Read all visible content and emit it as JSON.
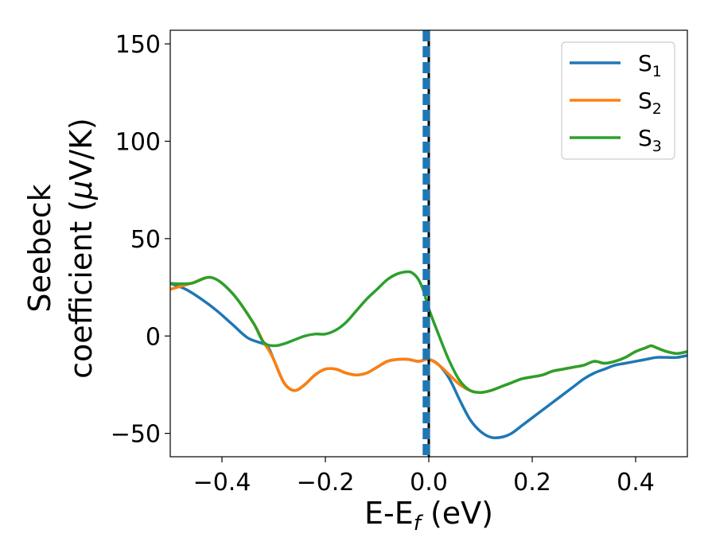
{
  "chart_data": {
    "type": "line",
    "title": "",
    "xlabel": {
      "main": "E-E",
      "sub": "f",
      "unit": " (eV)"
    },
    "ylabel": {
      "line1": "Seebeck",
      "line2_a": "coefficient  (",
      "mu": "μ",
      "line2_b": "V/K)"
    },
    "xlim": [
      -0.5,
      0.5
    ],
    "ylim": [
      -62,
      157
    ],
    "x_ticks": [
      -0.4,
      -0.2,
      0.0,
      0.2,
      0.4
    ],
    "x_tick_labels": [
      "−0.4",
      "−0.2",
      "0.0",
      "0.2",
      "0.4"
    ],
    "y_ticks": [
      -50,
      0,
      50,
      100,
      150
    ],
    "y_tick_labels": [
      "−50",
      "0",
      "50",
      "100",
      "150"
    ],
    "grid": false,
    "legend_position": "top-right",
    "vertical_lines": [
      {
        "x": -0.005,
        "style": "dashed",
        "color": "#1f77b4"
      },
      {
        "x": 0.0,
        "style": "solid",
        "color": "#000000"
      }
    ],
    "series": [
      {
        "name": "S",
        "subscript": "1",
        "color": "#1f77b4",
        "x": [
          -0.5,
          -0.47,
          -0.44,
          -0.41,
          -0.38,
          -0.35,
          -0.32,
          -0.31,
          -0.3,
          -0.28,
          -0.26,
          -0.24,
          -0.22,
          -0.2,
          -0.18,
          -0.16,
          -0.14,
          -0.12,
          -0.1,
          -0.08,
          -0.06,
          -0.04,
          -0.02,
          0.0,
          0.02,
          0.04,
          0.06,
          0.08,
          0.1,
          0.12,
          0.14,
          0.16,
          0.18,
          0.2,
          0.22,
          0.24,
          0.26,
          0.28,
          0.3,
          0.32,
          0.34,
          0.36,
          0.38,
          0.4,
          0.42,
          0.44,
          0.46,
          0.48,
          0.5
        ],
        "y": [
          27,
          24,
          19,
          13,
          6,
          -1,
          -4,
          -6,
          -12,
          -24,
          -28,
          -25,
          -20,
          -17,
          -17,
          -19,
          -20,
          -19,
          -16,
          -13,
          -12,
          -12,
          -13,
          -12,
          -15,
          -22,
          -33,
          -43,
          -49,
          -52,
          -52,
          -50,
          -46,
          -42,
          -38,
          -34,
          -30,
          -26,
          -22,
          -19,
          -17,
          -15,
          -14,
          -13,
          -12,
          -11,
          -11,
          -11,
          -10
        ]
      },
      {
        "name": "S",
        "subscript": "2",
        "color": "#ff7f0e",
        "x": [
          -0.5,
          -0.46,
          -0.42,
          -0.38,
          -0.34,
          -0.32,
          -0.31,
          -0.3,
          -0.28,
          -0.26,
          -0.24,
          -0.22,
          -0.2,
          -0.18,
          -0.16,
          -0.14,
          -0.12,
          -0.1,
          -0.08,
          -0.06,
          -0.04,
          -0.02,
          0.0,
          0.02,
          0.04,
          0.06,
          0.08,
          0.1,
          0.12,
          0.14,
          0.16,
          0.18,
          0.2,
          0.22,
          0.24,
          0.26,
          0.28,
          0.3,
          0.32,
          0.34,
          0.36,
          0.38,
          0.4,
          0.42,
          0.43,
          0.44,
          0.46,
          0.48,
          0.5
        ],
        "y": [
          24,
          27,
          30,
          22,
          7,
          -3,
          -7,
          -12,
          -24,
          -28,
          -25,
          -20,
          -17,
          -17,
          -19,
          -20,
          -19,
          -16,
          -13,
          -12,
          -12,
          -13,
          -12,
          -15,
          -20,
          -25,
          -28,
          -29,
          -28,
          -26,
          -24,
          -22,
          -21,
          -20,
          -18,
          -17,
          -16,
          -15,
          -13,
          -14,
          -13,
          -11,
          -8,
          -6,
          -5,
          -6,
          -8,
          -9,
          -8
        ]
      },
      {
        "name": "S",
        "subscript": "3",
        "color": "#2ca02c",
        "x": [
          -0.5,
          -0.46,
          -0.42,
          -0.38,
          -0.34,
          -0.32,
          -0.3,
          -0.28,
          -0.26,
          -0.24,
          -0.22,
          -0.2,
          -0.18,
          -0.16,
          -0.14,
          -0.12,
          -0.1,
          -0.08,
          -0.06,
          -0.04,
          -0.03,
          -0.02,
          -0.01,
          0.0,
          0.02,
          0.04,
          0.06,
          0.08,
          0.1,
          0.12,
          0.14,
          0.16,
          0.18,
          0.2,
          0.22,
          0.24,
          0.26,
          0.28,
          0.3,
          0.32,
          0.34,
          0.36,
          0.38,
          0.4,
          0.42,
          0.43,
          0.44,
          0.46,
          0.48,
          0.5
        ],
        "y": [
          27,
          27,
          30,
          22,
          7,
          -3,
          -5,
          -4,
          -2,
          0,
          1,
          1,
          3,
          7,
          13,
          19,
          24,
          29,
          32,
          33,
          32,
          29,
          23,
          14,
          0,
          -13,
          -23,
          -28,
          -29,
          -28,
          -26,
          -24,
          -22,
          -21,
          -20,
          -18,
          -17,
          -16,
          -15,
          -13,
          -14,
          -13,
          -11,
          -8,
          -6,
          -5,
          -6,
          -8,
          -9,
          -8
        ]
      }
    ]
  }
}
